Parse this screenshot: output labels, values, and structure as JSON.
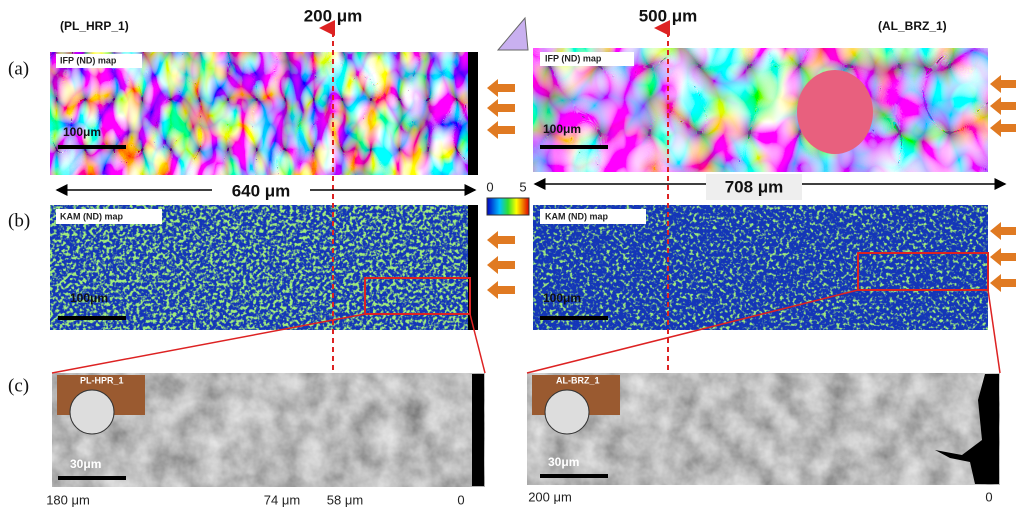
{
  "row_labels": [
    "(a)",
    "(b)",
    "(c)"
  ],
  "depth_markers": [
    "200 μm",
    "500 μm"
  ],
  "kam_colorbar": {
    "min": "0",
    "max": "5"
  },
  "panels": {
    "left": {
      "title": "(PL_HRP_1)",
      "ifp_label": "IFP (ND) map",
      "ifp_scale": "100μm",
      "width_label": "640 μm",
      "kam_label": "KAM (ND) map",
      "kam_scale": "100μm",
      "sem_label": "PL-HPR_1",
      "sem_scale": "30μm",
      "depth_ticks": [
        "180 μm",
        "74 μm",
        "58 μm",
        "0"
      ]
    },
    "right": {
      "title": "(AL_BRZ_1)",
      "ifp_label": "IFP (ND) map",
      "ifp_scale": "100μm",
      "width_label": "708 μm",
      "kam_label": "KAM (ND) map",
      "kam_scale": "100μm",
      "sem_label": "AL-BRZ_1",
      "sem_scale": "30μm",
      "depth_ticks": [
        "200 μm",
        "0"
      ]
    }
  }
}
